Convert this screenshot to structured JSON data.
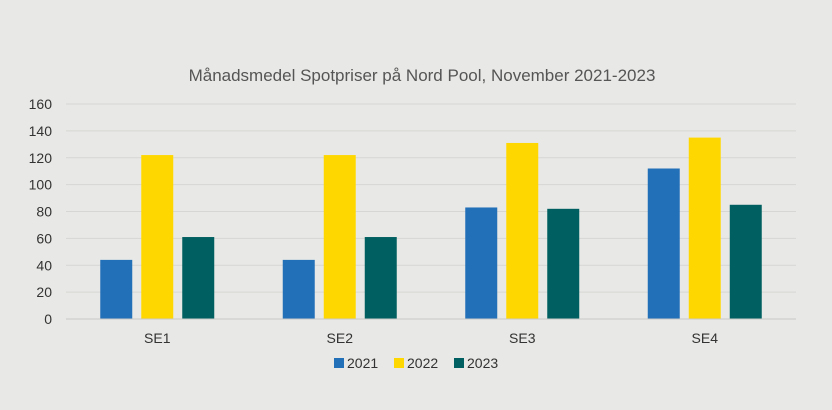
{
  "chart_data": {
    "type": "bar",
    "title": "Månadsmedel Spotpriser på Nord Pool, November 2021-2023",
    "xlabel": "",
    "ylabel": "",
    "categories": [
      "SE1",
      "SE2",
      "SE3",
      "SE4"
    ],
    "series": [
      {
        "name": "2021",
        "color": "#2271b8",
        "values": [
          44,
          44,
          83,
          112
        ]
      },
      {
        "name": "2022",
        "color": "#ffd700",
        "values": [
          122,
          122,
          131,
          135
        ]
      },
      {
        "name": "2023",
        "color": "#005f60",
        "values": [
          61,
          61,
          82,
          85
        ]
      }
    ],
    "ylim": [
      0,
      160
    ],
    "yticks": [
      "0",
      "20",
      "40",
      "60",
      "80",
      "100",
      "120",
      "140",
      "160"
    ],
    "grid": true,
    "legend_position": "bottom"
  }
}
